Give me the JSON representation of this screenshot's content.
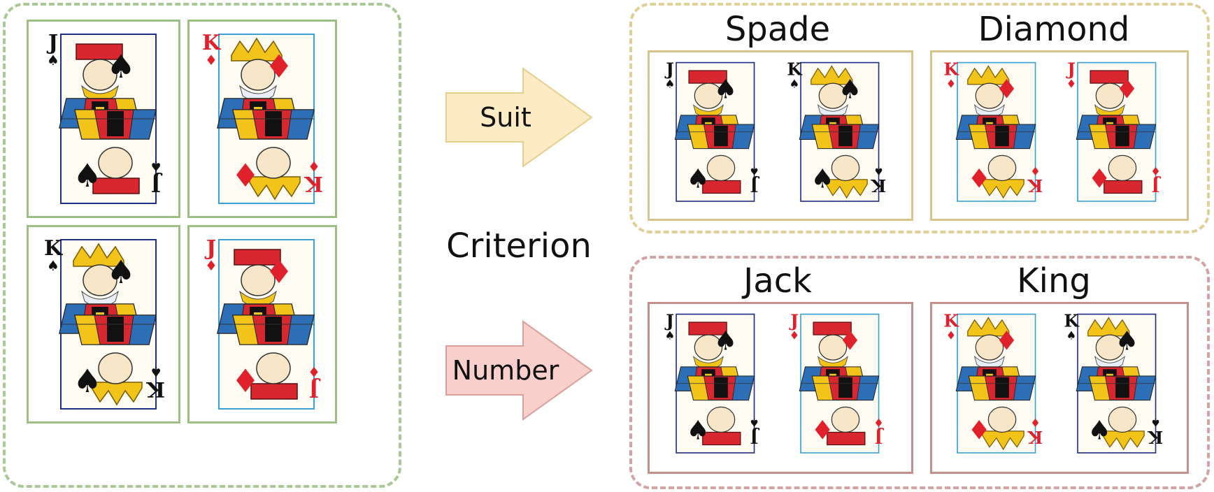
{
  "groups": {
    "source": {
      "label": ""
    },
    "suit": {
      "titles": [
        "Spade",
        "Diamond"
      ]
    },
    "number": {
      "titles": [
        "Jack",
        "King"
      ]
    }
  },
  "criterion": {
    "label": "Criterion"
  },
  "arrows": {
    "suit": {
      "label": "Suit",
      "fill": "#fdebc6",
      "stroke": "#e6cf8a"
    },
    "number": {
      "label": "Number",
      "fill": "#f9cfcc",
      "stroke": "#d9a09c"
    }
  },
  "colors": {
    "spade": "#111111",
    "diamond": "#e0212c",
    "royal_gold": "#f2c319",
    "royal_red": "#d8272f",
    "royal_blue": "#2d6fb6"
  },
  "cards": {
    "jack_spade": {
      "rank": "J",
      "suit": "spade",
      "pip": "♠"
    },
    "king_diamond": {
      "rank": "K",
      "suit": "diamond",
      "pip": "♦"
    },
    "king_spade": {
      "rank": "K",
      "suit": "spade",
      "pip": "♠"
    },
    "jack_diamond": {
      "rank": "J",
      "suit": "diamond",
      "pip": "♦"
    }
  }
}
